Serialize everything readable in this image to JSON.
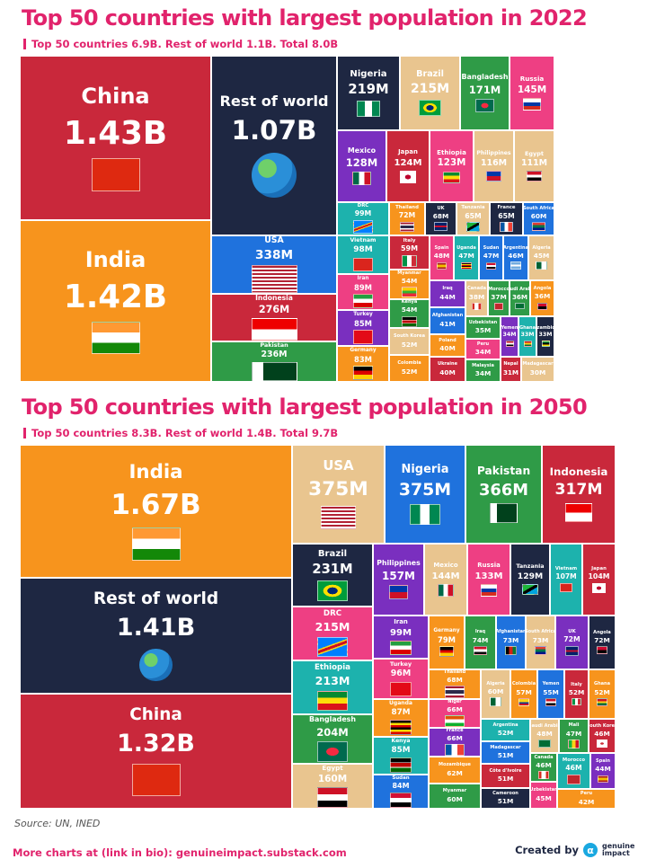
{
  "colors": {
    "red": "#c9283b",
    "orange": "#f7941d",
    "navy": "#1e2742",
    "blue": "#1f72dd",
    "green": "#2f9b47",
    "tan": "#e9c58f",
    "pink": "#ee3f83",
    "purple": "#7a2fbf",
    "teal": "#1db2ad",
    "title": "#e1236c"
  },
  "chart_data": [
    {
      "type": "treemap",
      "title": "Top 50 countries with largest population in 2022",
      "subtitle": "Top 50 countries 6.9B. Rest of world 1.1B. Total 8.0B",
      "items": [
        {
          "name": "China",
          "label": "1.43B",
          "value": 1430,
          "color": "red"
        },
        {
          "name": "India",
          "label": "1.42B",
          "value": 1420,
          "color": "orange"
        },
        {
          "name": "Rest of world",
          "label": "1.07B",
          "value": 1070,
          "color": "navy"
        },
        {
          "name": "USA",
          "label": "338M",
          "value": 338,
          "color": "blue"
        },
        {
          "name": "Indonesia",
          "label": "276M",
          "value": 276,
          "color": "red"
        },
        {
          "name": "Pakistan",
          "label": "236M",
          "value": 236,
          "color": "green"
        },
        {
          "name": "Nigeria",
          "label": "219M",
          "value": 219,
          "color": "navy"
        },
        {
          "name": "Brazil",
          "label": "215M",
          "value": 215,
          "color": "tan"
        },
        {
          "name": "Bangladesh",
          "label": "171M",
          "value": 171,
          "color": "green"
        },
        {
          "name": "Russia",
          "label": "145M",
          "value": 145,
          "color": "pink"
        },
        {
          "name": "Mexico",
          "label": "128M",
          "value": 128,
          "color": "purple"
        },
        {
          "name": "Japan",
          "label": "124M",
          "value": 124,
          "color": "red"
        },
        {
          "name": "Ethiopia",
          "label": "123M",
          "value": 123,
          "color": "pink"
        },
        {
          "name": "Philippines",
          "label": "116M",
          "value": 116,
          "color": "tan"
        },
        {
          "name": "Egypt",
          "label": "111M",
          "value": 111,
          "color": "tan"
        },
        {
          "name": "DRC",
          "label": "99M",
          "value": 99,
          "color": "teal"
        },
        {
          "name": "Thailand",
          "label": "72M",
          "value": 72,
          "color": "orange"
        },
        {
          "name": "UK",
          "label": "68M",
          "value": 68,
          "color": "navy"
        },
        {
          "name": "Tanzania",
          "label": "65M",
          "value": 65,
          "color": "tan"
        },
        {
          "name": "France",
          "label": "65M",
          "value": 65,
          "color": "navy"
        },
        {
          "name": "South Africa",
          "label": "60M",
          "value": 60,
          "color": "blue"
        },
        {
          "name": "Vietnam",
          "label": "98M",
          "value": 98,
          "color": "teal"
        },
        {
          "name": "Iran",
          "label": "89M",
          "value": 89,
          "color": "pink"
        },
        {
          "name": "Turkey",
          "label": "85M",
          "value": 85,
          "color": "purple"
        },
        {
          "name": "Germany",
          "label": "83M",
          "value": 83,
          "color": "orange"
        },
        {
          "name": "Italy",
          "label": "59M",
          "value": 59,
          "color": "red"
        },
        {
          "name": "Myanmar",
          "label": "54M",
          "value": 54,
          "color": "orange"
        },
        {
          "name": "Kenya",
          "label": "54M",
          "value": 54,
          "color": "green"
        },
        {
          "name": "South Korea",
          "label": "52M",
          "value": 52,
          "color": "tan"
        },
        {
          "name": "Colombia",
          "label": "52M",
          "value": 52,
          "color": "orange"
        },
        {
          "name": "Spain",
          "label": "48M",
          "value": 48,
          "color": "pink"
        },
        {
          "name": "Uganda",
          "label": "47M",
          "value": 47,
          "color": "teal"
        },
        {
          "name": "Sudan",
          "label": "47M",
          "value": 47,
          "color": "blue"
        },
        {
          "name": "Argentina",
          "label": "46M",
          "value": 46,
          "color": "blue"
        },
        {
          "name": "Algeria",
          "label": "45M",
          "value": 45,
          "color": "tan"
        },
        {
          "name": "Iraq",
          "label": "44M",
          "value": 44,
          "color": "purple"
        },
        {
          "name": "Afghanistan",
          "label": "41M",
          "value": 41,
          "color": "blue"
        },
        {
          "name": "Poland",
          "label": "40M",
          "value": 40,
          "color": "orange"
        },
        {
          "name": "Ukraine",
          "label": "40M",
          "value": 40,
          "color": "red"
        },
        {
          "name": "Canada",
          "label": "38M",
          "value": 38,
          "color": "tan"
        },
        {
          "name": "Morocco",
          "label": "37M",
          "value": 37,
          "color": "green"
        },
        {
          "name": "Saudi Arabia",
          "label": "36M",
          "value": 36,
          "color": "green"
        },
        {
          "name": "Angola",
          "label": "36M",
          "value": 36,
          "color": "orange"
        },
        {
          "name": "Uzbekistan",
          "label": "35M",
          "value": 35,
          "color": "green"
        },
        {
          "name": "Yemen",
          "label": "34M",
          "value": 34,
          "color": "purple"
        },
        {
          "name": "Ghana",
          "label": "33M",
          "value": 33,
          "color": "teal"
        },
        {
          "name": "Mozambique",
          "label": "33M",
          "value": 33,
          "color": "navy"
        },
        {
          "name": "Peru",
          "label": "34M",
          "value": 34,
          "color": "pink"
        },
        {
          "name": "Malaysia",
          "label": "34M",
          "value": 34,
          "color": "green"
        },
        {
          "name": "Nepal",
          "label": "31M",
          "value": 31,
          "color": "red"
        },
        {
          "name": "Madagascar",
          "label": "30M",
          "value": 30,
          "color": "tan"
        }
      ]
    },
    {
      "type": "treemap",
      "title": "Top 50 countries with largest population in 2050",
      "subtitle": "Top 50 countries 8.3B. Rest of world 1.4B. Total 9.7B",
      "items": [
        {
          "name": "India",
          "label": "1.67B",
          "value": 1670,
          "color": "orange"
        },
        {
          "name": "Rest of world",
          "label": "1.41B",
          "value": 1410,
          "color": "navy"
        },
        {
          "name": "China",
          "label": "1.32B",
          "value": 1320,
          "color": "red"
        },
        {
          "name": "USA",
          "label": "375M",
          "value": 375,
          "color": "tan"
        },
        {
          "name": "Nigeria",
          "label": "375M",
          "value": 375,
          "color": "blue"
        },
        {
          "name": "Pakistan",
          "label": "366M",
          "value": 366,
          "color": "green"
        },
        {
          "name": "Indonesia",
          "label": "317M",
          "value": 317,
          "color": "red"
        },
        {
          "name": "Brazil",
          "label": "231M",
          "value": 231,
          "color": "navy"
        },
        {
          "name": "DRC",
          "label": "215M",
          "value": 215,
          "color": "pink"
        },
        {
          "name": "Ethiopia",
          "label": "213M",
          "value": 213,
          "color": "teal"
        },
        {
          "name": "Bangladesh",
          "label": "204M",
          "value": 204,
          "color": "green"
        },
        {
          "name": "Egypt",
          "label": "160M",
          "value": 160,
          "color": "tan"
        },
        {
          "name": "Philippines",
          "label": "157M",
          "value": 157,
          "color": "purple"
        },
        {
          "name": "Mexico",
          "label": "144M",
          "value": 144,
          "color": "tan"
        },
        {
          "name": "Russia",
          "label": "133M",
          "value": 133,
          "color": "pink"
        },
        {
          "name": "Tanzania",
          "label": "129M",
          "value": 129,
          "color": "navy"
        },
        {
          "name": "Vietnam",
          "label": "107M",
          "value": 107,
          "color": "teal"
        },
        {
          "name": "Japan",
          "label": "104M",
          "value": 104,
          "color": "red"
        },
        {
          "name": "Iran",
          "label": "99M",
          "value": 99,
          "color": "purple"
        },
        {
          "name": "Turkey",
          "label": "96M",
          "value": 96,
          "color": "pink"
        },
        {
          "name": "Uganda",
          "label": "87M",
          "value": 87,
          "color": "orange"
        },
        {
          "name": "Kenya",
          "label": "85M",
          "value": 85,
          "color": "teal"
        },
        {
          "name": "Sudan",
          "label": "84M",
          "value": 84,
          "color": "blue"
        },
        {
          "name": "Germany",
          "label": "79M",
          "value": 79,
          "color": "orange"
        },
        {
          "name": "Iraq",
          "label": "74M",
          "value": 74,
          "color": "green"
        },
        {
          "name": "Afghanistan",
          "label": "73M",
          "value": 73,
          "color": "blue"
        },
        {
          "name": "South Africa",
          "label": "73M",
          "value": 73,
          "color": "tan"
        },
        {
          "name": "UK",
          "label": "72M",
          "value": 72,
          "color": "purple"
        },
        {
          "name": "Angola",
          "label": "72M",
          "value": 72,
          "color": "navy"
        },
        {
          "name": "Thailand",
          "label": "68M",
          "value": 68,
          "color": "orange"
        },
        {
          "name": "Niger",
          "label": "66M",
          "value": 66,
          "color": "pink"
        },
        {
          "name": "France",
          "label": "66M",
          "value": 66,
          "color": "purple"
        },
        {
          "name": "Mozambique",
          "label": "62M",
          "value": 62,
          "color": "orange"
        },
        {
          "name": "Myanmar",
          "label": "60M",
          "value": 60,
          "color": "green"
        },
        {
          "name": "Algeria",
          "label": "60M",
          "value": 60,
          "color": "tan"
        },
        {
          "name": "Colombia",
          "label": "57M",
          "value": 57,
          "color": "orange"
        },
        {
          "name": "Yemen",
          "label": "55M",
          "value": 55,
          "color": "blue"
        },
        {
          "name": "Italy",
          "label": "52M",
          "value": 52,
          "color": "red"
        },
        {
          "name": "Ghana",
          "label": "52M",
          "value": 52,
          "color": "orange"
        },
        {
          "name": "Argentina",
          "label": "52M",
          "value": 52,
          "color": "teal"
        },
        {
          "name": "Madagascar",
          "label": "51M",
          "value": 51,
          "color": "blue"
        },
        {
          "name": "Côte d'Ivoire",
          "label": "51M",
          "value": 51,
          "color": "red"
        },
        {
          "name": "Cameroon",
          "label": "51M",
          "value": 51,
          "color": "navy"
        },
        {
          "name": "Saudi Arabia",
          "label": "48M",
          "value": 48,
          "color": "tan"
        },
        {
          "name": "Mali",
          "label": "47M",
          "value": 47,
          "color": "green"
        },
        {
          "name": "South Korea",
          "label": "46M",
          "value": 46,
          "color": "red"
        },
        {
          "name": "Canada",
          "label": "46M",
          "value": 46,
          "color": "green"
        },
        {
          "name": "Morocco",
          "label": "46M",
          "value": 46,
          "color": "teal"
        },
        {
          "name": "Spain",
          "label": "44M",
          "value": 44,
          "color": "purple"
        },
        {
          "name": "Uzbekistan",
          "label": "45M",
          "value": 45,
          "color": "pink"
        },
        {
          "name": "Peru",
          "label": "42M",
          "value": 42,
          "color": "orange"
        }
      ]
    }
  ],
  "footer": {
    "source": "Source: UN, INED",
    "more": "More charts at (link in bio): genuineimpact.substack.com",
    "created_by": "Created by",
    "brand": "genuine impact"
  }
}
